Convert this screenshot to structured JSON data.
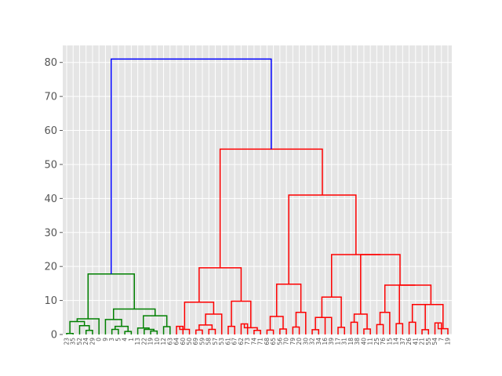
{
  "chart_data": {
    "type": "dendrogram",
    "title": "",
    "xlabel": "",
    "ylabel": "",
    "ylim": [
      0,
      85
    ],
    "yticks": [
      0,
      10,
      20,
      30,
      40,
      50,
      60,
      70,
      80
    ],
    "grid": true,
    "leaves": [
      23,
      35,
      52,
      24,
      29,
      0,
      9,
      3,
      5,
      4,
      1,
      13,
      22,
      19,
      10,
      12,
      63,
      64,
      60,
      50,
      69,
      59,
      58,
      57,
      53,
      61,
      67,
      62,
      73,
      74,
      71,
      68,
      65,
      56,
      70,
      79,
      20,
      30,
      32,
      34,
      16,
      39,
      17,
      31,
      18,
      38,
      40,
      11,
      25,
      76,
      15,
      14,
      37,
      26,
      41,
      21,
      55,
      54,
      7,
      19
    ],
    "cluster_colors": {
      "left": "#008000",
      "right": "#ff0000",
      "root": "#0000ff"
    },
    "merges": [
      {
        "id": "g1",
        "left": 0,
        "right": 1,
        "height": 0.3,
        "color": "#008000"
      },
      {
        "id": "g2",
        "left": 3,
        "right": 4,
        "height": 1.2,
        "color": "#008000"
      },
      {
        "id": "g3",
        "left": 2,
        "right": "g2",
        "height": 2.6,
        "color": "#008000"
      },
      {
        "id": "g4",
        "left": "g1",
        "right": "g3",
        "height": 3.8,
        "color": "#008000"
      },
      {
        "id": "g5",
        "left": 5,
        "right": "g4",
        "height": 4.6,
        "color": "#008000"
      },
      {
        "id": "g6",
        "left": 7,
        "right": 8,
        "height": 1.5,
        "color": "#008000"
      },
      {
        "id": "g7",
        "left": 9,
        "right": 10,
        "height": 0.9,
        "color": "#008000"
      },
      {
        "id": "g8",
        "left": "g6",
        "right": "g7",
        "height": 2.4,
        "color": "#008000"
      },
      {
        "id": "g9",
        "left": 6,
        "right": "g8",
        "height": 4.4,
        "color": "#008000"
      },
      {
        "id": "g10",
        "left": 13,
        "right": 14,
        "height": 1.0,
        "color": "#008000"
      },
      {
        "id": "g11",
        "left": 12,
        "right": "g10",
        "height": 1.5,
        "color": "#008000"
      },
      {
        "id": "g12",
        "left": 15,
        "right": 16,
        "height": 2.3,
        "color": "#008000"
      },
      {
        "id": "g13",
        "left": 11,
        "right": "g11",
        "height": 1.9,
        "color": "#008000"
      },
      {
        "id": "g14",
        "left": "g13",
        "right": "g12",
        "height": 5.5,
        "color": "#008000"
      },
      {
        "id": "g15",
        "left": "g9",
        "right": "g14",
        "height": 7.5,
        "color": "#008000"
      },
      {
        "id": "g16",
        "left": "g5",
        "right": "g15",
        "height": 17.8,
        "color": "#008000"
      },
      {
        "id": "r1",
        "left": 17,
        "right": 18,
        "height": 2.4,
        "color": "#ff0000"
      },
      {
        "id": "r2",
        "left": "r1",
        "right": 19,
        "height": 1.5,
        "color": "#ff0000"
      },
      {
        "id": "r3",
        "left": 20,
        "right": 21,
        "height": 1.3,
        "color": "#ff0000"
      },
      {
        "id": "r4",
        "left": 22,
        "right": 23,
        "height": 1.5,
        "color": "#ff0000"
      },
      {
        "id": "r5",
        "left": "r3",
        "right": "r4",
        "height": 2.8,
        "color": "#ff0000"
      },
      {
        "id": "r6",
        "left": "r5",
        "right": 24,
        "height": 6.0,
        "color": "#ff0000"
      },
      {
        "id": "r7",
        "left": "r2",
        "right": "r6",
        "height": 9.5,
        "color": "#ff0000"
      },
      {
        "id": "r8",
        "left": 25,
        "right": 26,
        "height": 2.4,
        "color": "#ff0000"
      },
      {
        "id": "r9",
        "left": 27,
        "right": 28,
        "height": 3.1,
        "color": "#ff0000"
      },
      {
        "id": "r10",
        "left": 29,
        "right": 30,
        "height": 1.2,
        "color": "#ff0000"
      },
      {
        "id": "r11",
        "left": "r9",
        "right": "r10",
        "height": 2.0,
        "color": "#ff0000"
      },
      {
        "id": "r12",
        "left": "r8",
        "right": "r11",
        "height": 9.8,
        "color": "#ff0000"
      },
      {
        "id": "r13",
        "left": "r7",
        "right": "r12",
        "height": 19.6,
        "color": "#ff0000"
      },
      {
        "id": "r14",
        "left": 31,
        "right": 32,
        "height": 1.3,
        "color": "#ff0000"
      },
      {
        "id": "r15",
        "left": 33,
        "right": 34,
        "height": 1.6,
        "color": "#ff0000"
      },
      {
        "id": "r16",
        "left": "r14",
        "right": "r15",
        "height": 5.3,
        "color": "#ff0000"
      },
      {
        "id": "r17",
        "left": 35,
        "right": 36,
        "height": 2.2,
        "color": "#ff0000"
      },
      {
        "id": "r18",
        "left": "r17",
        "right": 37,
        "height": 6.5,
        "color": "#ff0000"
      },
      {
        "id": "r19",
        "left": "r16",
        "right": "r18",
        "height": 14.8,
        "color": "#ff0000"
      },
      {
        "id": "r20",
        "left": 38,
        "right": 39,
        "height": 1.4,
        "color": "#ff0000"
      },
      {
        "id": "r21",
        "left": 40,
        "right": 41,
        "height": 5.0,
        "color": "#ff0000"
      },
      {
        "id": "r22",
        "left": "r20",
        "right": "r21",
        "height": 5.0,
        "color": "#ff0000"
      },
      {
        "id": "r23",
        "left": 42,
        "right": 43,
        "height": 2.1,
        "color": "#ff0000"
      },
      {
        "id": "r24",
        "left": "r22",
        "right": "r23",
        "height": 11.0,
        "color": "#ff0000"
      },
      {
        "id": "r25",
        "left": 44,
        "right": 45,
        "height": 3.6,
        "color": "#ff0000"
      },
      {
        "id": "r26",
        "left": 46,
        "right": 47,
        "height": 1.6,
        "color": "#ff0000"
      },
      {
        "id": "r27",
        "left": "r25",
        "right": "r26",
        "height": 6.0,
        "color": "#ff0000"
      },
      {
        "id": "r28",
        "left": 48,
        "right": 49,
        "height": 2.9,
        "color": "#ff0000"
      },
      {
        "id": "r29",
        "left": "r28",
        "right": 50,
        "height": 6.5,
        "color": "#ff0000"
      },
      {
        "id": "r30",
        "left": 51,
        "right": 52,
        "height": 3.2,
        "color": "#ff0000"
      },
      {
        "id": "r31",
        "left": 53,
        "right": 54,
        "height": 3.6,
        "color": "#ff0000"
      },
      {
        "id": "r32",
        "left": 55,
        "right": 56,
        "height": 1.4,
        "color": "#ff0000"
      },
      {
        "id": "r33",
        "left": "r31",
        "right": "r32",
        "height": 8.8,
        "color": "#ff0000"
      },
      {
        "id": "r34",
        "left": 57,
        "right": 58,
        "height": 3.4,
        "color": "#ff0000"
      },
      {
        "id": "r35",
        "left": "r34",
        "right": 59,
        "height": 1.7,
        "color": "#ff0000"
      },
      {
        "id": "r36",
        "left": "r33",
        "right": "r35",
        "height": 8.8,
        "color": "#ff0000"
      },
      {
        "id": "r37",
        "left": "r30",
        "right": "r36",
        "height": 14.5,
        "color": "#ff0000"
      },
      {
        "id": "r38",
        "left": "r29",
        "right": "r37",
        "height": 14.5,
        "color": "#ff0000"
      },
      {
        "id": "r39",
        "left": "r27",
        "right": "r38",
        "height": 23.5,
        "color": "#ff0000"
      },
      {
        "id": "r40",
        "left": "r24",
        "right": "r39",
        "height": 23.5,
        "color": "#ff0000"
      },
      {
        "id": "r41",
        "left": "r19",
        "right": "r40",
        "height": 41.0,
        "color": "#ff0000"
      },
      {
        "id": "r42",
        "left": "r13",
        "right": "r41",
        "height": 54.5,
        "color": "#ff0000"
      },
      {
        "id": "root",
        "left": "g16",
        "right": "r42",
        "height": 81.0,
        "color": "#0000ff"
      }
    ]
  }
}
